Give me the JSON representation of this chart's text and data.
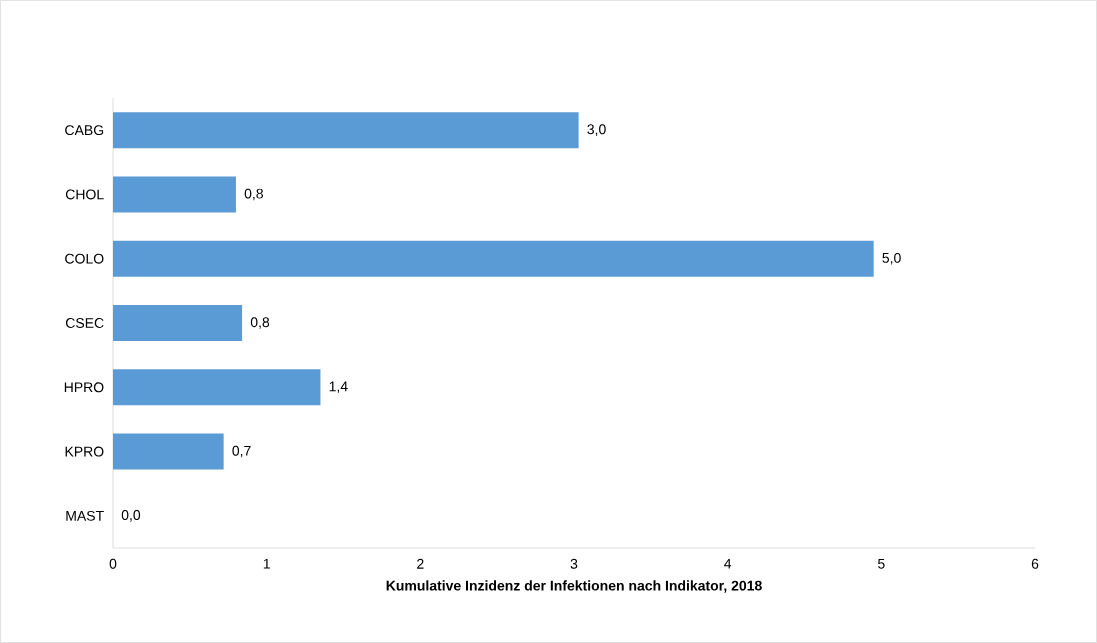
{
  "chart_data": {
    "type": "bar",
    "orientation": "horizontal",
    "xlabel": "Kumulative Inzidenz der Infektionen nach Indikator, 2018",
    "categories": [
      "CABG",
      "CHOL",
      "COLO",
      "CSEC",
      "HPRO",
      "KPRO",
      "MAST"
    ],
    "values": [
      3.03,
      0.8,
      4.95,
      0.84,
      1.35,
      0.72,
      0
    ],
    "value_labels": [
      "3,0",
      "0,8",
      "5,0",
      "0,8",
      "1,4",
      "0,7",
      "0,0"
    ],
    "color": "#5b9bd5",
    "xlim": [
      0,
      6
    ],
    "xticks": [
      0,
      1,
      2,
      3,
      4,
      5,
      6
    ]
  }
}
